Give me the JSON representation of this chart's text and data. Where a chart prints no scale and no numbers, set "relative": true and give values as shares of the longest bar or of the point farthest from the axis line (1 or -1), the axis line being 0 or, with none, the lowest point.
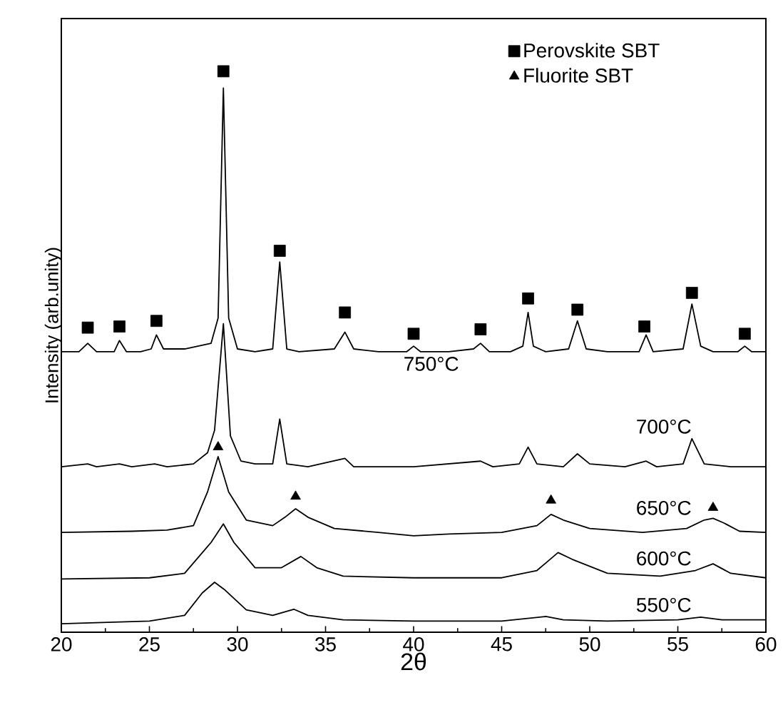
{
  "chart_data": {
    "type": "line",
    "relative": true,
    "xlabel": "2θ",
    "ylabel": "Intensity (arb.unity)",
    "xlim": [
      20,
      60
    ],
    "xticks": [
      20,
      25,
      30,
      35,
      40,
      45,
      50,
      55,
      60
    ],
    "tick_labels": "x",
    "legend": "top right",
    "grid": false,
    "series": [
      {
        "name": "750°C",
        "color": "#000000",
        "x": [
          20,
          21,
          21.5,
          22,
          23,
          23.3,
          23.7,
          24.5,
          25.1,
          25.4,
          25.8,
          27,
          28.5,
          28.9,
          29.2,
          29.5,
          30,
          31,
          32,
          32.4,
          32.8,
          33.5,
          35.5,
          36.1,
          36.6,
          38,
          39.6,
          40,
          40.4,
          42,
          43.4,
          43.8,
          44.3,
          45.5,
          46.2,
          46.5,
          46.8,
          47.5,
          48.8,
          49.3,
          49.8,
          51,
          52.8,
          53.2,
          53.6,
          55.3,
          55.8,
          56.3,
          57,
          58.4,
          58.8,
          59.2,
          60
        ],
        "values": [
          0.5,
          0.5,
          0.515,
          0.5,
          0.5,
          0.52,
          0.5,
          0.5,
          0.505,
          0.53,
          0.505,
          0.505,
          0.515,
          0.56,
          0.97,
          0.56,
          0.505,
          0.5,
          0.505,
          0.66,
          0.505,
          0.5,
          0.505,
          0.535,
          0.505,
          0.5,
          0.5,
          0.51,
          0.5,
          0.5,
          0.505,
          0.515,
          0.5,
          0.5,
          0.51,
          0.57,
          0.51,
          0.5,
          0.505,
          0.555,
          0.505,
          0.5,
          0.5,
          0.53,
          0.5,
          0.505,
          0.585,
          0.51,
          0.5,
          0.5,
          0.51,
          0.5,
          0.5
        ]
      },
      {
        "name": "700°C",
        "color": "#000000",
        "x": [
          20,
          21.5,
          22,
          23.3,
          24,
          25.3,
          26,
          27.5,
          28.3,
          28.7,
          29.2,
          29.6,
          30.2,
          31,
          32,
          32.4,
          32.8,
          34,
          36.1,
          36.6,
          40,
          43.8,
          44.5,
          46,
          46.5,
          47,
          48.5,
          49.3,
          50,
          52,
          53.2,
          53.8,
          55.3,
          55.8,
          56.5,
          58,
          60
        ],
        "values": [
          0.295,
          0.3,
          0.295,
          0.3,
          0.295,
          0.3,
          0.295,
          0.3,
          0.32,
          0.36,
          0.55,
          0.35,
          0.305,
          0.3,
          0.3,
          0.38,
          0.3,
          0.295,
          0.31,
          0.295,
          0.295,
          0.305,
          0.295,
          0.3,
          0.33,
          0.3,
          0.295,
          0.318,
          0.3,
          0.295,
          0.305,
          0.295,
          0.3,
          0.345,
          0.3,
          0.295,
          0.295
        ]
      },
      {
        "name": "650°C",
        "color": "#000000",
        "x": [
          20,
          24,
          26,
          27.5,
          28.3,
          28.9,
          29.5,
          30.5,
          32,
          32.7,
          33.3,
          34,
          35.5,
          38,
          40,
          42,
          45,
          47,
          47.8,
          48.5,
          50,
          53,
          55.5,
          56.5,
          57,
          57.6,
          58.5,
          60
        ],
        "values": [
          0.178,
          0.18,
          0.182,
          0.19,
          0.25,
          0.313,
          0.25,
          0.2,
          0.19,
          0.205,
          0.22,
          0.205,
          0.185,
          0.178,
          0.172,
          0.175,
          0.178,
          0.19,
          0.21,
          0.2,
          0.185,
          0.178,
          0.185,
          0.2,
          0.203,
          0.195,
          0.18,
          0.178
        ]
      },
      {
        "name": "600°C",
        "color": "#000000",
        "x": [
          20,
          25,
          27,
          28.5,
          29.2,
          29.8,
          31,
          32.5,
          33.6,
          34.5,
          36,
          40,
          45,
          47,
          48.2,
          49,
          51,
          54,
          56,
          57,
          58,
          60
        ],
        "values": [
          0.095,
          0.097,
          0.105,
          0.16,
          0.193,
          0.16,
          0.115,
          0.115,
          0.135,
          0.115,
          0.1,
          0.097,
          0.097,
          0.11,
          0.142,
          0.13,
          0.105,
          0.1,
          0.11,
          0.122,
          0.105,
          0.097
        ]
      },
      {
        "name": "550°C",
        "color": "#000000",
        "x": [
          20,
          25,
          27,
          28,
          28.7,
          29.3,
          30.5,
          32,
          33.2,
          34,
          36,
          40,
          45,
          47.5,
          48.5,
          51,
          55,
          56.3,
          57.5,
          60
        ],
        "values": [
          0.015,
          0.02,
          0.03,
          0.07,
          0.089,
          0.075,
          0.04,
          0.03,
          0.041,
          0.03,
          0.022,
          0.02,
          0.02,
          0.028,
          0.022,
          0.02,
          0.022,
          0.027,
          0.022,
          0.022
        ]
      },
      {
        "name": "Perovskite SBT",
        "type": "scatter",
        "marker": "square",
        "color": "#000000",
        "x": [
          21.5,
          23.3,
          25.4,
          29.2,
          32.4,
          36.1,
          40,
          43.8,
          46.5,
          49.3,
          53.1,
          55.8,
          58.8
        ],
        "values": [
          0.543,
          0.545,
          0.555,
          1.0,
          0.68,
          0.57,
          0.532,
          0.54,
          0.595,
          0.575,
          0.545,
          0.605,
          0.532
        ]
      },
      {
        "name": "Fluorite SBT",
        "type": "scatter",
        "marker": "triangle",
        "color": "#000000",
        "x": [
          28.9,
          33.3,
          47.8,
          57
        ],
        "values": [
          0.33,
          0.242,
          0.235,
          0.222
        ]
      }
    ]
  }
}
